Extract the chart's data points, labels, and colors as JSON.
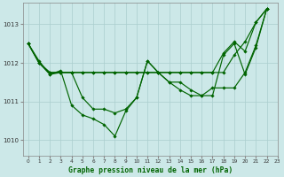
{
  "background_color": "#cce8e8",
  "grid_color": "#aacece",
  "line_color": "#006400",
  "title": "Graphe pression niveau de la mer (hPa)",
  "xlim": [
    -0.5,
    23
  ],
  "ylim": [
    1009.6,
    1013.55
  ],
  "yticks": [
    1010,
    1011,
    1012,
    1013
  ],
  "xticks": [
    0,
    1,
    2,
    3,
    4,
    5,
    6,
    7,
    8,
    9,
    10,
    11,
    12,
    13,
    14,
    15,
    16,
    17,
    18,
    19,
    20,
    21,
    22,
    23
  ],
  "line1": [
    1012.5,
    1012.0,
    1011.75,
    1011.75,
    1011.75,
    1011.75,
    1011.75,
    1011.75,
    1011.75,
    1011.75,
    1011.75,
    1011.75,
    1011.75,
    1011.75,
    1011.75,
    1011.75,
    1011.75,
    1011.75,
    1011.75,
    1012.2,
    1012.55,
    1013.05,
    1013.4
  ],
  "line2": [
    1012.5,
    1012.0,
    1011.75,
    1011.75,
    1011.75,
    1011.75,
    1011.75,
    1011.75,
    1011.75,
    1011.75,
    1011.75,
    1011.75,
    1011.75,
    1011.75,
    1011.75,
    1011.75,
    1011.75,
    1011.75,
    1012.25,
    1012.55,
    1012.3,
    1013.05,
    1013.4
  ],
  "line3": [
    1012.5,
    1012.0,
    1011.7,
    1011.75,
    1011.75,
    1011.1,
    1010.8,
    1010.8,
    1010.7,
    1010.8,
    1011.1,
    1012.05,
    1011.75,
    1011.5,
    1011.5,
    1011.3,
    1011.15,
    1011.15,
    1012.2,
    1012.5,
    1011.7,
    1012.4,
    1013.4
  ],
  "line4": [
    1012.5,
    1012.05,
    1011.7,
    1011.8,
    1010.9,
    1010.65,
    1010.55,
    1010.4,
    1010.1,
    1010.75,
    1011.1,
    1012.05,
    1011.75,
    1011.5,
    1011.3,
    1011.15,
    1011.15,
    1011.35,
    1011.35,
    1011.35,
    1011.75,
    1012.45,
    1013.4
  ],
  "x_values": [
    0,
    1,
    2,
    3,
    4,
    5,
    6,
    7,
    8,
    9,
    10,
    11,
    12,
    13,
    14,
    15,
    16,
    17,
    18,
    19,
    20,
    21,
    22
  ]
}
